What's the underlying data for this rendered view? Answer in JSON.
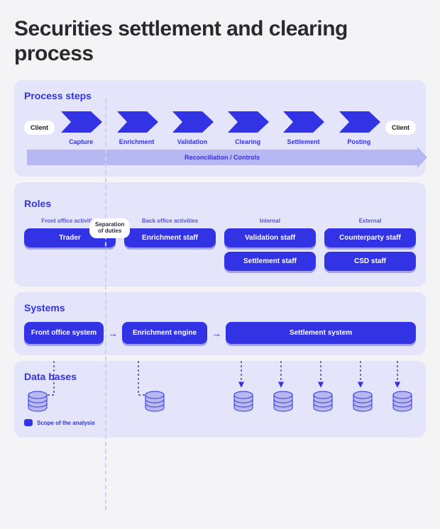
{
  "title": "Securities settlement and clearing process",
  "colors": {
    "page_bg": "#f4f4f6",
    "section_bg": "#e4e4fa",
    "primary": "#3333e6",
    "primary_shadow": "rgba(40,40,200,0.35)",
    "light_arrow": "#b7b7f2",
    "sep_dash": "#cfcff2",
    "db_fill": "#b7b7f2",
    "db_stroke": "#3333e6",
    "text_dark": "#2a2a2e"
  },
  "separation": {
    "line1": "Separation",
    "line2": "of duties"
  },
  "process": {
    "header": "Process steps",
    "start_pill": "Client",
    "end_pill": "Client",
    "steps": [
      "Capture",
      "Enrichment",
      "Validation",
      "Clearing",
      "Settlement",
      "Posting"
    ],
    "recon_label": "Reconciliation / Controls"
  },
  "roles": {
    "header": "Roles",
    "columns": [
      {
        "micro": "Front office activities",
        "pills": [
          "Trader"
        ]
      },
      {
        "micro": "Back office activities",
        "pills": [
          "Enrichment staff"
        ]
      },
      {
        "micro": "Internal",
        "pills": [
          "Validation staff",
          "Settlement staff"
        ]
      },
      {
        "micro": "External",
        "pills": [
          "Counterparty staff",
          "CSD staff"
        ]
      }
    ]
  },
  "systems": {
    "header": "Systems",
    "boxes": [
      "Front office system",
      "Enrichment engine",
      "Settlement system"
    ]
  },
  "databases": {
    "header": "Data bases",
    "legend": "Scope of the analysis",
    "left_count": 1,
    "mid_count": 1,
    "right_count": 5
  }
}
